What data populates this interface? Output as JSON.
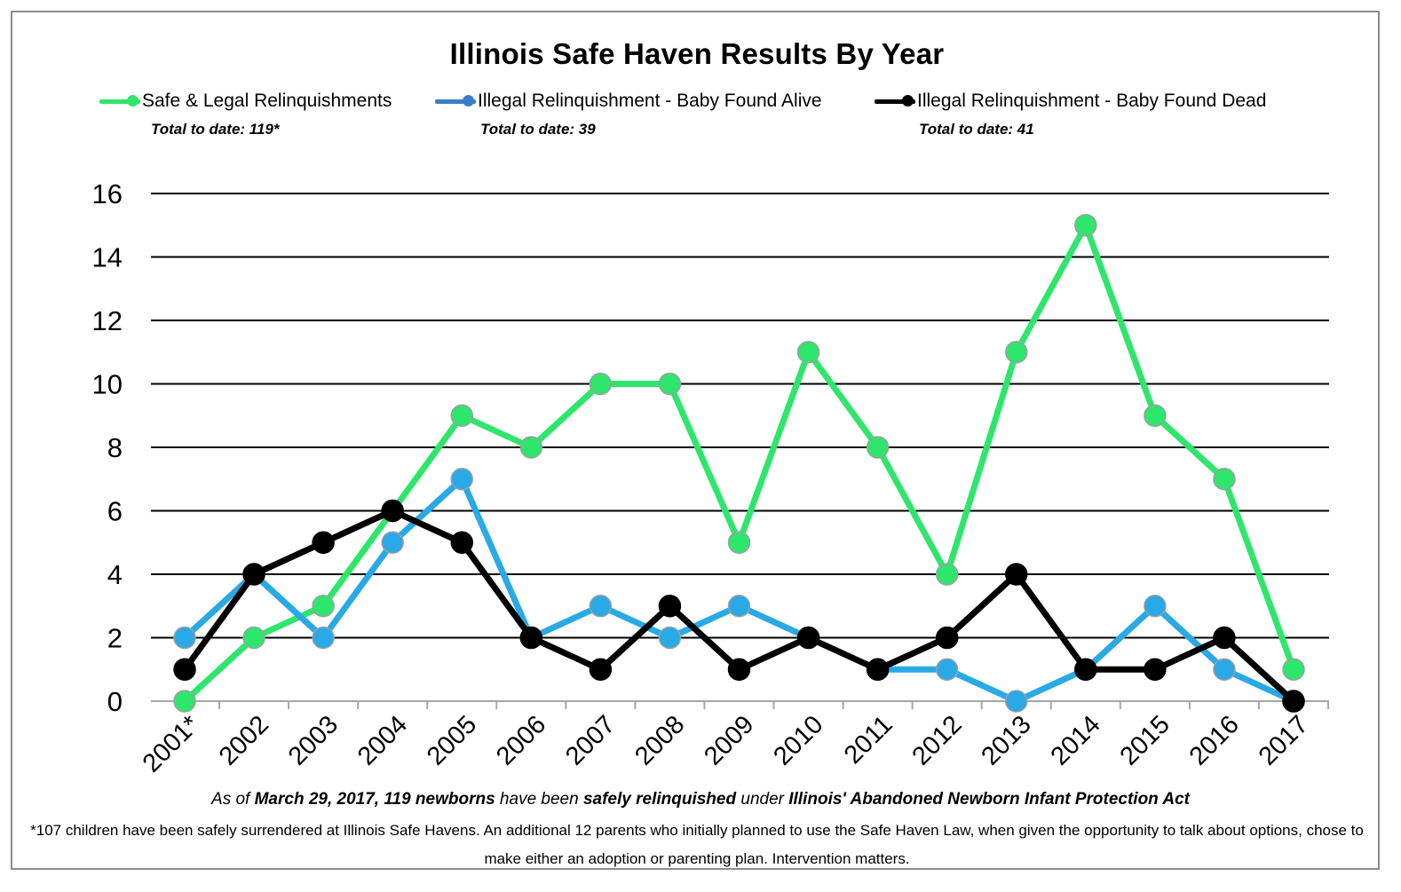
{
  "chart_data": {
    "type": "line",
    "title": "Illinois Safe Haven Results By Year",
    "categories": [
      "2001*",
      "2002",
      "2003",
      "2004",
      "2005",
      "2006",
      "2007",
      "2008",
      "2009",
      "2010",
      "2011",
      "2012",
      "2013",
      "2014",
      "2015",
      "2016",
      "2017"
    ],
    "ylim": [
      0,
      16
    ],
    "yticks": [
      "0",
      "2",
      "4",
      "6",
      "8",
      "10",
      "12",
      "14",
      "16"
    ],
    "grid": true,
    "legend_position": "top",
    "series": [
      {
        "name": "Safe & Legal Relinquishments",
        "color": "#2ee66b",
        "total_label": "Total to date: 119*",
        "values": [
          0,
          2,
          3,
          6,
          9,
          8,
          10,
          10,
          5,
          11,
          8,
          4,
          11,
          15,
          9,
          7,
          1
        ]
      },
      {
        "name": "Illegal Relinquishment - Baby Found Alive",
        "color": "#29a9e6",
        "total_label": "Total to date: 39",
        "values": [
          2,
          4,
          2,
          5,
          7,
          2,
          3,
          2,
          3,
          2,
          1,
          1,
          0,
          1,
          3,
          1,
          0
        ]
      },
      {
        "name": "Illegal Relinquishment - Baby Found Dead",
        "color": "#000000",
        "total_label": "Total to date: 41",
        "values": [
          1,
          4,
          5,
          6,
          5,
          2,
          1,
          3,
          1,
          2,
          1,
          2,
          4,
          1,
          1,
          2,
          0
        ]
      }
    ]
  },
  "footer": {
    "main": {
      "p1": "As of ",
      "b1": "March 29, 2017,  119 newborns",
      "p2": " have been ",
      "b2": "safely relinquished",
      "p3": " under ",
      "b3": "Illinois' Abandoned Newborn Infant Protection Act"
    },
    "note": "*107 children have been safely surrendered at Illinois Safe Havens.  An additional 12 parents who initially planned to use the Safe Haven Law, when given the opportunity to talk about options, chose to make either an adoption or parenting plan.   Intervention matters."
  }
}
